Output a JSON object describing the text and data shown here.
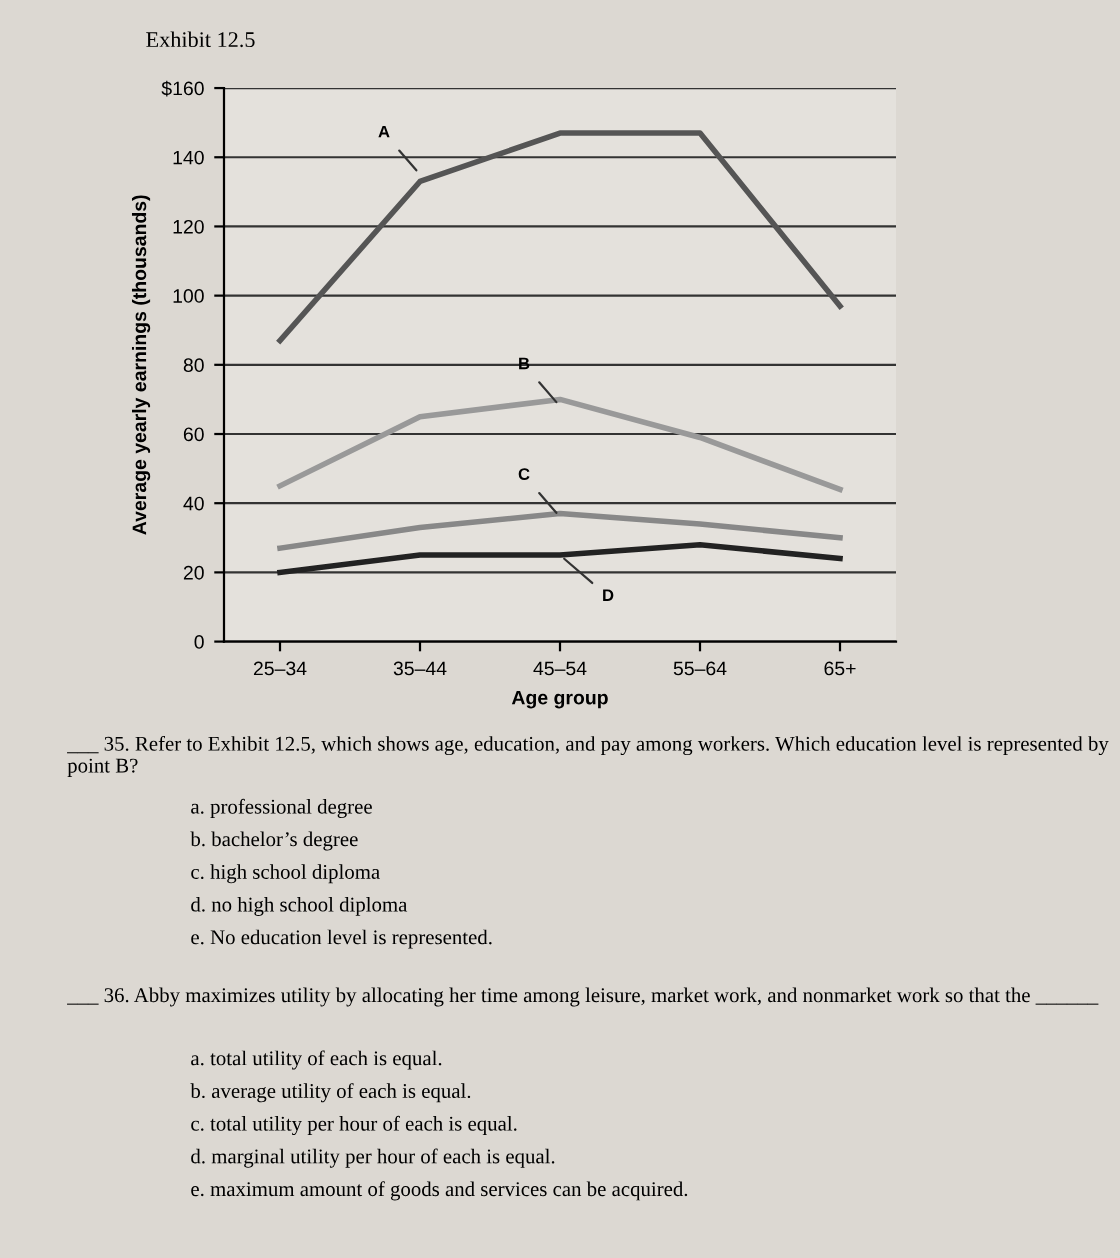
{
  "chart_data": {
    "type": "line",
    "title": "Exhibit 12.5",
    "xlabel": "Age group",
    "ylabel": "Average yearly earnings (thousands)",
    "categories": [
      "25–34",
      "35–44",
      "45–54",
      "55–64",
      "65+"
    ],
    "series": [
      {
        "color": "#555555",
        "values": [
          87,
          133,
          147,
          147,
          97
        ]
      },
      {
        "color": "#999999",
        "values": [
          45,
          65,
          70,
          59,
          44
        ]
      },
      {
        "color": "#888888",
        "values": [
          27,
          33,
          37,
          34,
          30
        ]
      },
      {
        "color": "#222222",
        "values": [
          20,
          25,
          25,
          28,
          24
        ]
      }
    ],
    "ylim": [
      0,
      160
    ],
    "yticks": [
      0,
      20,
      40,
      60,
      80,
      100,
      120,
      140,
      {
        "value": 160,
        "label": "$160"
      }
    ],
    "grid": "y",
    "marker": "none",
    "line_style": "solid",
    "annotations": [
      {
        "text": "A",
        "x": "35–44",
        "y": 135
      },
      {
        "text": "B",
        "x": "45–54",
        "y": 68
      },
      {
        "text": "C",
        "x": "45–54",
        "y": 36
      },
      {
        "text": "D",
        "x": "45–54",
        "y": 25
      },
      "___ 35. Refer to Exhibit 12.5, which shows age, education, and pay among workers. Which education level is represented by point B?",
      "a. professional degree",
      "b. bachelor’s degree",
      "c. high school diploma",
      "d. no high school diploma",
      "e. No education level is represented.",
      "___ 36. Abby maximizes utility by allocating her time among leisure, market work, and nonmarket work so that the ______",
      "a. total utility of each is equal.",
      "b. average utility of each is equal.",
      "c. total utility per hour of each is equal.",
      "d. marginal utility per hour of each is equal.",
      "e. maximum amount of goods and services can be acquired."
    ]
  }
}
